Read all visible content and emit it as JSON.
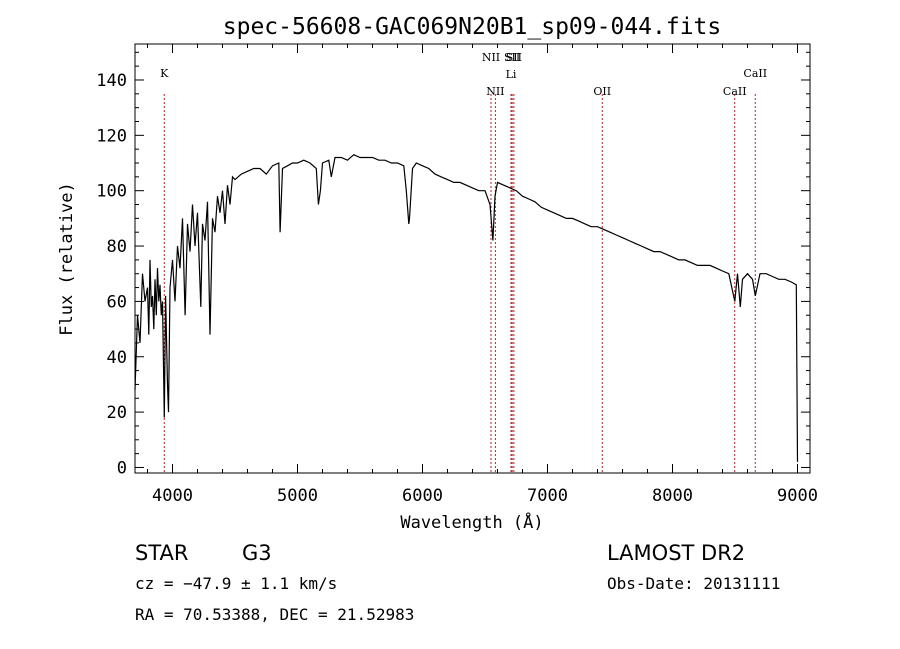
{
  "chart_data": {
    "type": "line",
    "title": "spec-56608-GAC069N20B1_sp09-044.fits",
    "xlabel": "Wavelength (Å)",
    "ylabel": "Flux (relative)",
    "xlim": [
      3700,
      9100
    ],
    "ylim": [
      -2,
      153
    ],
    "x_ticks": [
      4000,
      5000,
      6000,
      7000,
      8000,
      9000
    ],
    "y_ticks": [
      0,
      20,
      40,
      60,
      80,
      100,
      120,
      140
    ],
    "grid": false,
    "spectral_lines": [
      {
        "label": "K",
        "wavelength": 3934
      },
      {
        "label": "NII",
        "wavelength": 6548
      },
      {
        "label": "NII",
        "wavelength": 6583
      },
      {
        "label": "SII",
        "wavelength": 6717
      },
      {
        "label": "Li",
        "wavelength": 6708
      },
      {
        "label": "SII",
        "wavelength": 6731
      },
      {
        "label": "OII",
        "wavelength": 7438
      },
      {
        "label": "CaII",
        "wavelength": 8498
      },
      {
        "label": "CaII",
        "wavelength": 8662
      }
    ],
    "series": [
      {
        "x": [
          3700,
          3720,
          3740,
          3760,
          3780,
          3800,
          3810,
          3820,
          3830,
          3840,
          3850,
          3860,
          3870,
          3880,
          3890,
          3900,
          3910,
          3920,
          3934,
          3945,
          3960,
          3968,
          3980,
          4000,
          4020,
          4040,
          4060,
          4080,
          4101,
          4120,
          4140,
          4160,
          4180,
          4200,
          4226,
          4240,
          4260,
          4280,
          4300,
          4320,
          4340,
          4360,
          4380,
          4400,
          4420,
          4440,
          4460,
          4480,
          4500,
          4550,
          4600,
          4650,
          4700,
          4750,
          4800,
          4850,
          4861,
          4880,
          4920,
          4960,
          5000,
          5050,
          5100,
          5150,
          5167,
          5183,
          5200,
          5250,
          5270,
          5300,
          5350,
          5400,
          5450,
          5500,
          5550,
          5600,
          5650,
          5700,
          5750,
          5800,
          5850,
          5870,
          5890,
          5896,
          5920,
          5950,
          6000,
          6050,
          6100,
          6150,
          6200,
          6250,
          6300,
          6350,
          6400,
          6450,
          6500,
          6540,
          6563,
          6580,
          6600,
          6650,
          6700,
          6750,
          6800,
          6850,
          6900,
          6950,
          7000,
          7050,
          7100,
          7150,
          7200,
          7250,
          7300,
          7350,
          7400,
          7450,
          7500,
          7550,
          7600,
          7650,
          7700,
          7750,
          7800,
          7850,
          7900,
          7950,
          8000,
          8050,
          8100,
          8150,
          8200,
          8250,
          8300,
          8350,
          8400,
          8450,
          8498,
          8520,
          8542,
          8560,
          8600,
          8640,
          8662,
          8700,
          8750,
          8800,
          8850,
          8900,
          8950,
          8990,
          9000
        ],
        "y": [
          28,
          55,
          45,
          70,
          60,
          65,
          48,
          75,
          58,
          62,
          50,
          68,
          55,
          72,
          60,
          66,
          55,
          60,
          18,
          62,
          30,
          20,
          65,
          75,
          60,
          80,
          72,
          90,
          55,
          88,
          78,
          95,
          80,
          92,
          58,
          88,
          82,
          96,
          48,
          90,
          85,
          98,
          92,
          100,
          88,
          102,
          95,
          105,
          104,
          106,
          107,
          108,
          108,
          106,
          109,
          110,
          85,
          108,
          109,
          110,
          110,
          111,
          110,
          108,
          95,
          100,
          110,
          111,
          105,
          112,
          112,
          111,
          113,
          112,
          112,
          112,
          111,
          111,
          110,
          110,
          109,
          100,
          88,
          90,
          108,
          110,
          109,
          108,
          106,
          105,
          104,
          103,
          103,
          102,
          101,
          100,
          100,
          95,
          82,
          98,
          103,
          102,
          101,
          100,
          98,
          97,
          96,
          94,
          93,
          92,
          91,
          90,
          90,
          89,
          88,
          87,
          87,
          86,
          85,
          84,
          83,
          82,
          81,
          80,
          79,
          78,
          78,
          77,
          76,
          75,
          75,
          74,
          73,
          73,
          73,
          72,
          71,
          70,
          60,
          70,
          58,
          68,
          70,
          68,
          62,
          70,
          70,
          69,
          68,
          68,
          67,
          66,
          2
        ],
        "color": "#000000"
      }
    ]
  },
  "info": {
    "object_type": "STAR",
    "subclass": "G3",
    "redshift_line": "cz = −47.9 ± 1.1 km/s",
    "coords_line": "RA =  70.53388, DEC =  21.52983",
    "survey": "LAMOST DR2",
    "obs_date": "Obs-Date: 20131111"
  }
}
